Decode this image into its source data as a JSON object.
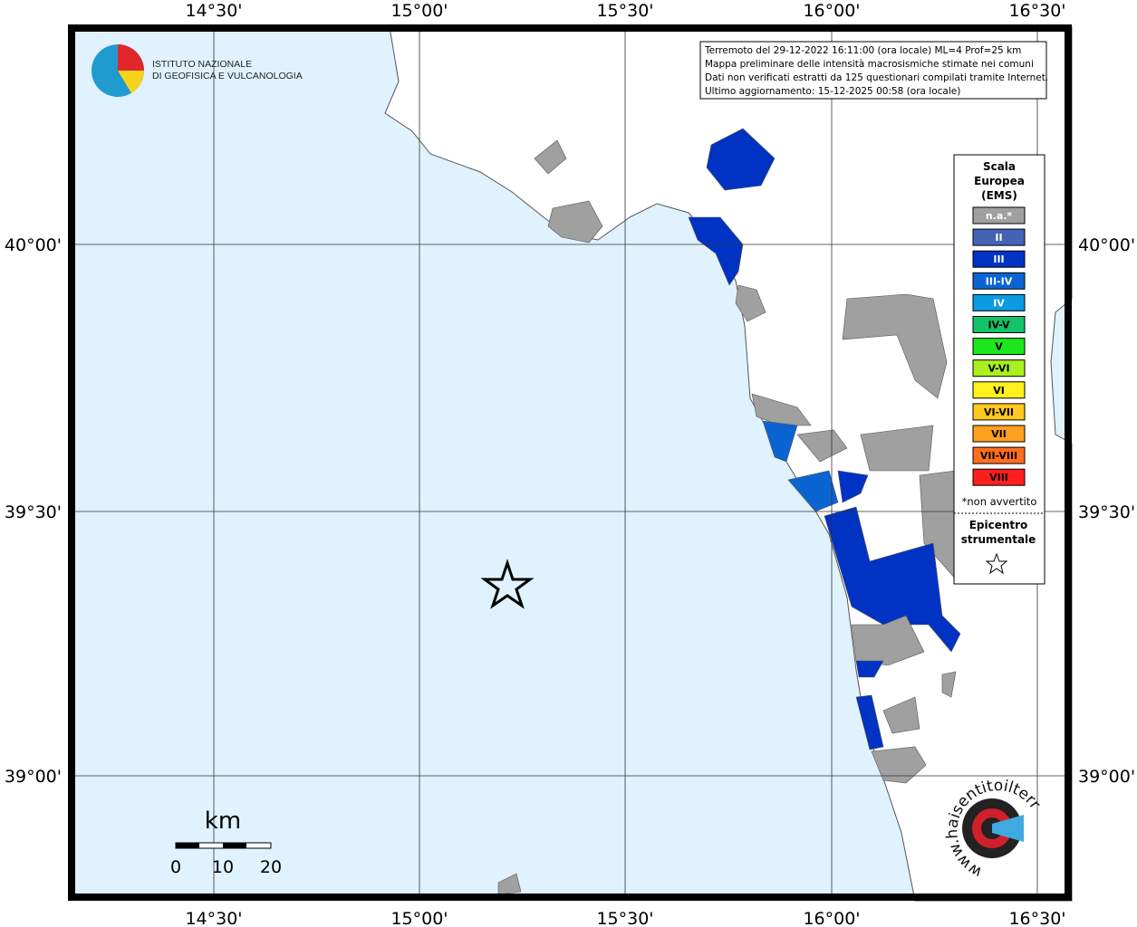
{
  "header": {
    "logo_lines": [
      "ISTITUTO NAZIONALE",
      "DI GEOFISICA E VULCANOLOGIA"
    ]
  },
  "info": [
    "Terremoto del 29-12-2022 16:11:00 (ora locale) ML=4 Prof=25 km",
    "Mappa preliminare delle intensità macrosismiche stimate nei comuni",
    "Dati non verificati estratti da 125 questionari compilati tramite Internet.",
    "Ultimo aggiornamento: 15-12-2025 00:58 (ora locale)"
  ],
  "axes": {
    "lon_ticks": [
      "14°30'",
      "15°00'",
      "15°30'",
      "16°00'",
      "16°30'"
    ],
    "lat_ticks": [
      "40°00'",
      "39°30'",
      "39°00'"
    ]
  },
  "legend": {
    "title": [
      "Scala",
      "Europea",
      "(EMS)"
    ],
    "items": [
      {
        "label": "n.a.*",
        "color": "#a0a0a0"
      },
      {
        "label": "II",
        "color": "#4463b5"
      },
      {
        "label": "III",
        "color": "#0033c4"
      },
      {
        "label": "III-IV",
        "color": "#0a64d2"
      },
      {
        "label": "IV",
        "color": "#0a9be0"
      },
      {
        "label": "IV-V",
        "color": "#12c36a"
      },
      {
        "label": "V",
        "color": "#1ee61e"
      },
      {
        "label": "V-VI",
        "color": "#aaf01e"
      },
      {
        "label": "VI",
        "color": "#fff01e"
      },
      {
        "label": "VI-VII",
        "color": "#ffc81e"
      },
      {
        "label": "VII",
        "color": "#ffa01e"
      },
      {
        "label": "VII-VIII",
        "color": "#ff6e1e"
      },
      {
        "label": "VIII",
        "color": "#ff1e1e"
      }
    ],
    "footnote": "*non avvertito",
    "epicentre_title": [
      "Epicentro",
      "strumentale"
    ]
  },
  "scale_bar": {
    "unit": "km",
    "labels": [
      "0",
      "10",
      "20"
    ]
  },
  "site_logo": "www.haisentitoilterremoto.it"
}
